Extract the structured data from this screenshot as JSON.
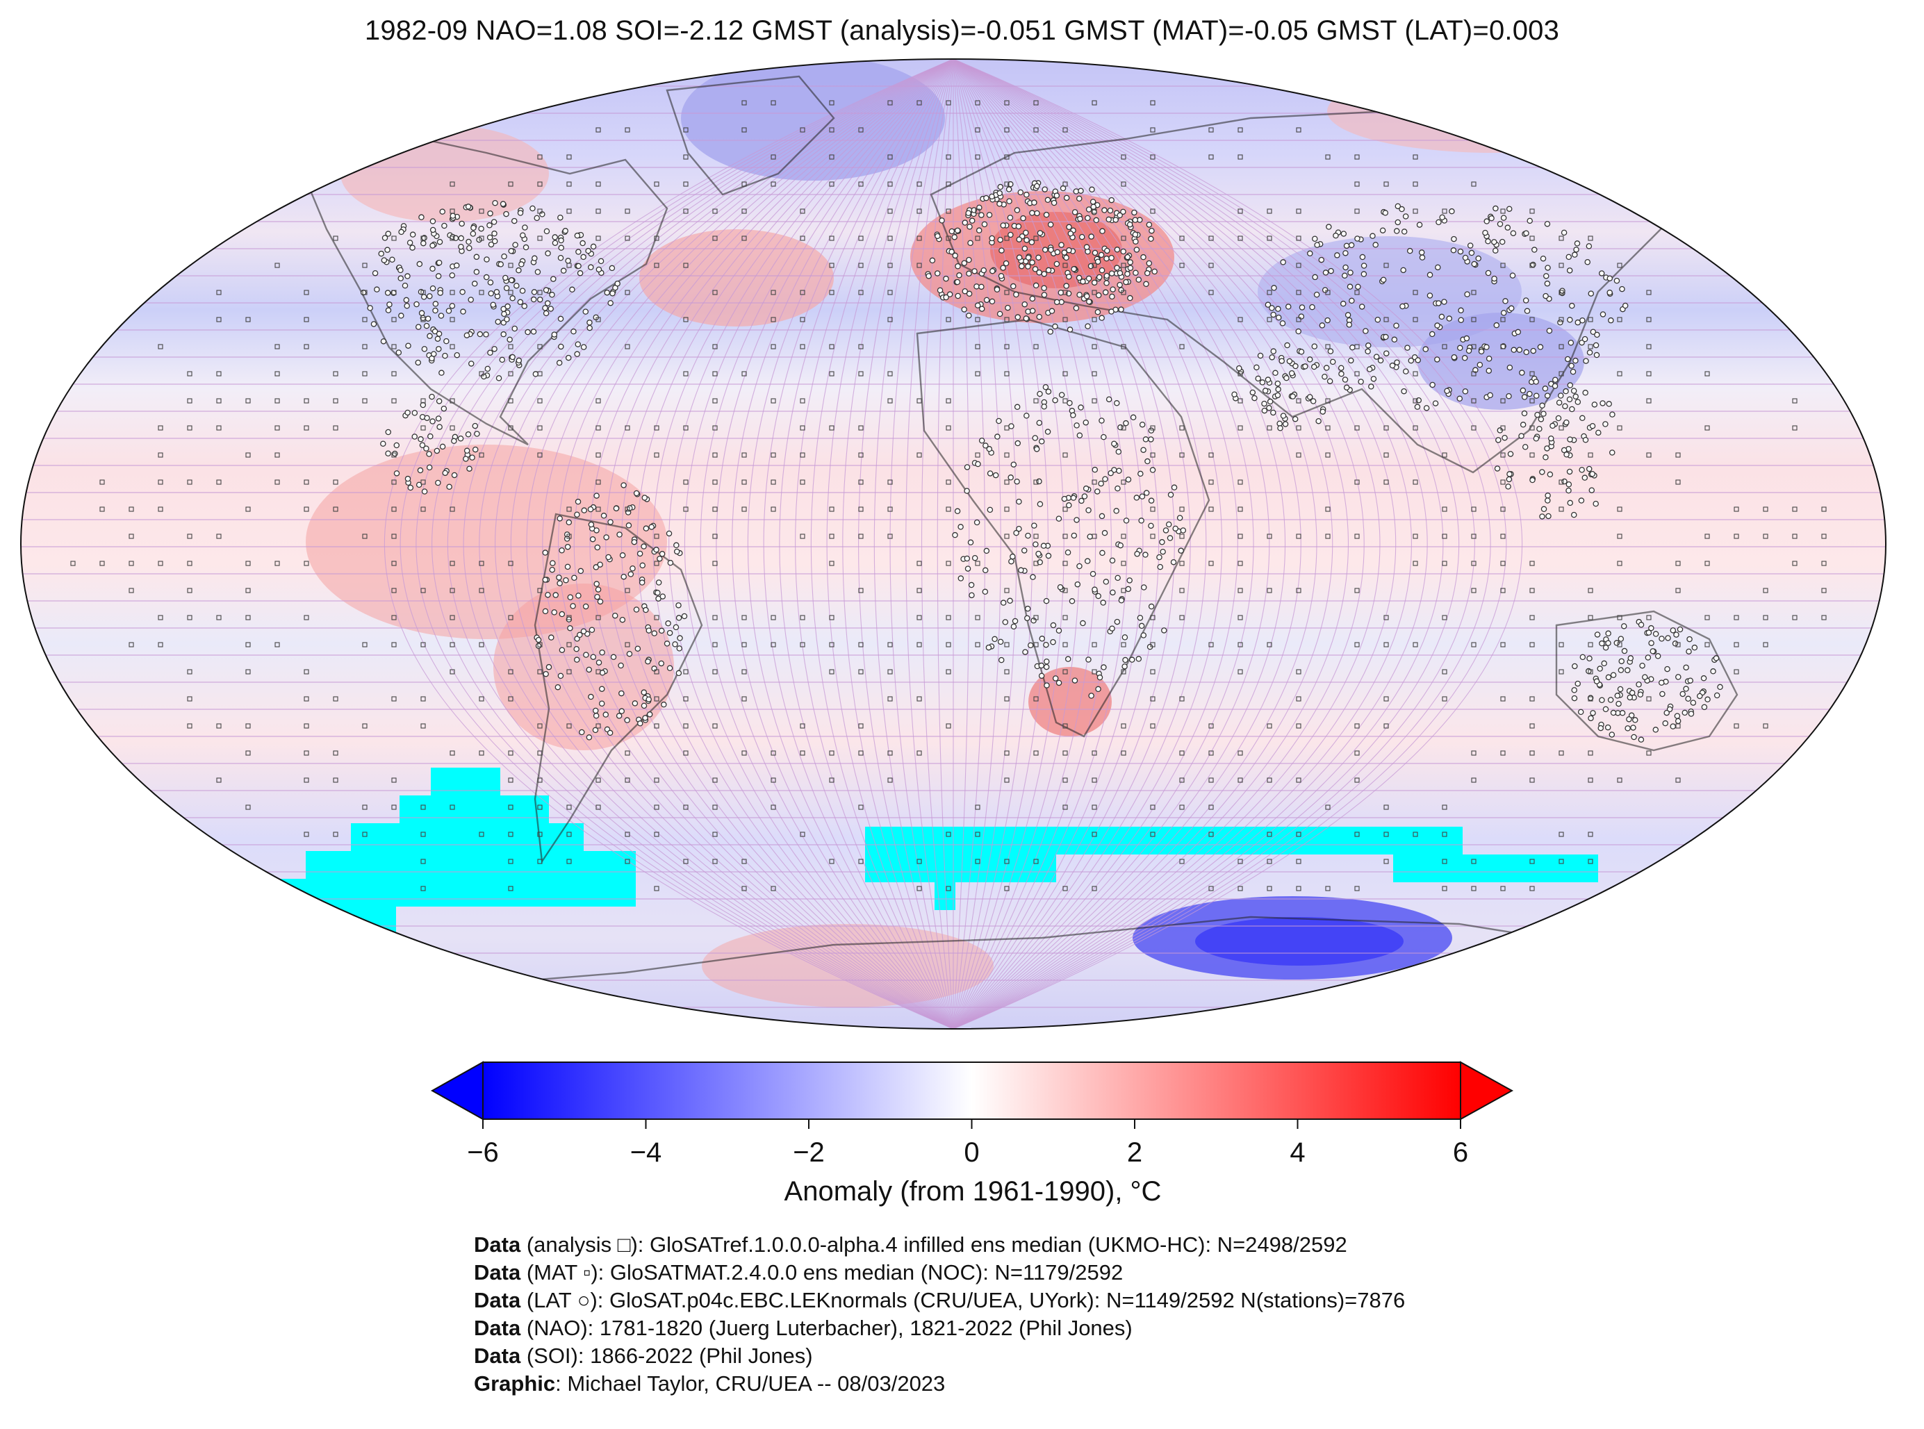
{
  "title": "1982-09 NAO=1.08 SOI=-2.12 GMST (analysis)=-0.051 GMST (MAT)=-0.05 GMST (LAT)=0.003",
  "legend": {
    "label": "Anomaly (from 1961-1990), °C",
    "range": [
      -6,
      6
    ],
    "ticks": [
      {
        "value": -6,
        "label": "−6"
      },
      {
        "value": -4,
        "label": "−4"
      },
      {
        "value": -2,
        "label": "−2"
      },
      {
        "value": 0,
        "label": "0"
      },
      {
        "value": 2,
        "label": "2"
      },
      {
        "value": 4,
        "label": "4"
      },
      {
        "value": 6,
        "label": "6"
      }
    ],
    "colors": {
      "cold": "#0000ff",
      "neutral": "#ffffff",
      "warm": "#ff0000",
      "no_data": "#00ffff"
    }
  },
  "credits": [
    {
      "label": "Data",
      "text": " (analysis □): GloSATref.1.0.0.0-alpha.4 infilled ens median (UKMO-HC): N=2498/2592"
    },
    {
      "label": "Data",
      "text": " (MAT ▫): GloSATMAT.2.4.0.0 ens median (NOC): N=1179/2592"
    },
    {
      "label": "Data",
      "text": " (LAT ○): GloSAT.p04c.EBC.LEKnormals (CRU/UEA, UYork): N=1149/2592 N(stations)=7876"
    },
    {
      "label": "Data",
      "text": " (NAO): 1781-1820 (Juerg Luterbacher), 1821-2022 (Phil Jones)"
    },
    {
      "label": "Data",
      "text": " (SOI): 1866-2022 (Phil Jones)"
    },
    {
      "label": "Graphic",
      "text": ": Michael Taylor, CRU/UEA -- 08/03/2023"
    }
  ]
}
